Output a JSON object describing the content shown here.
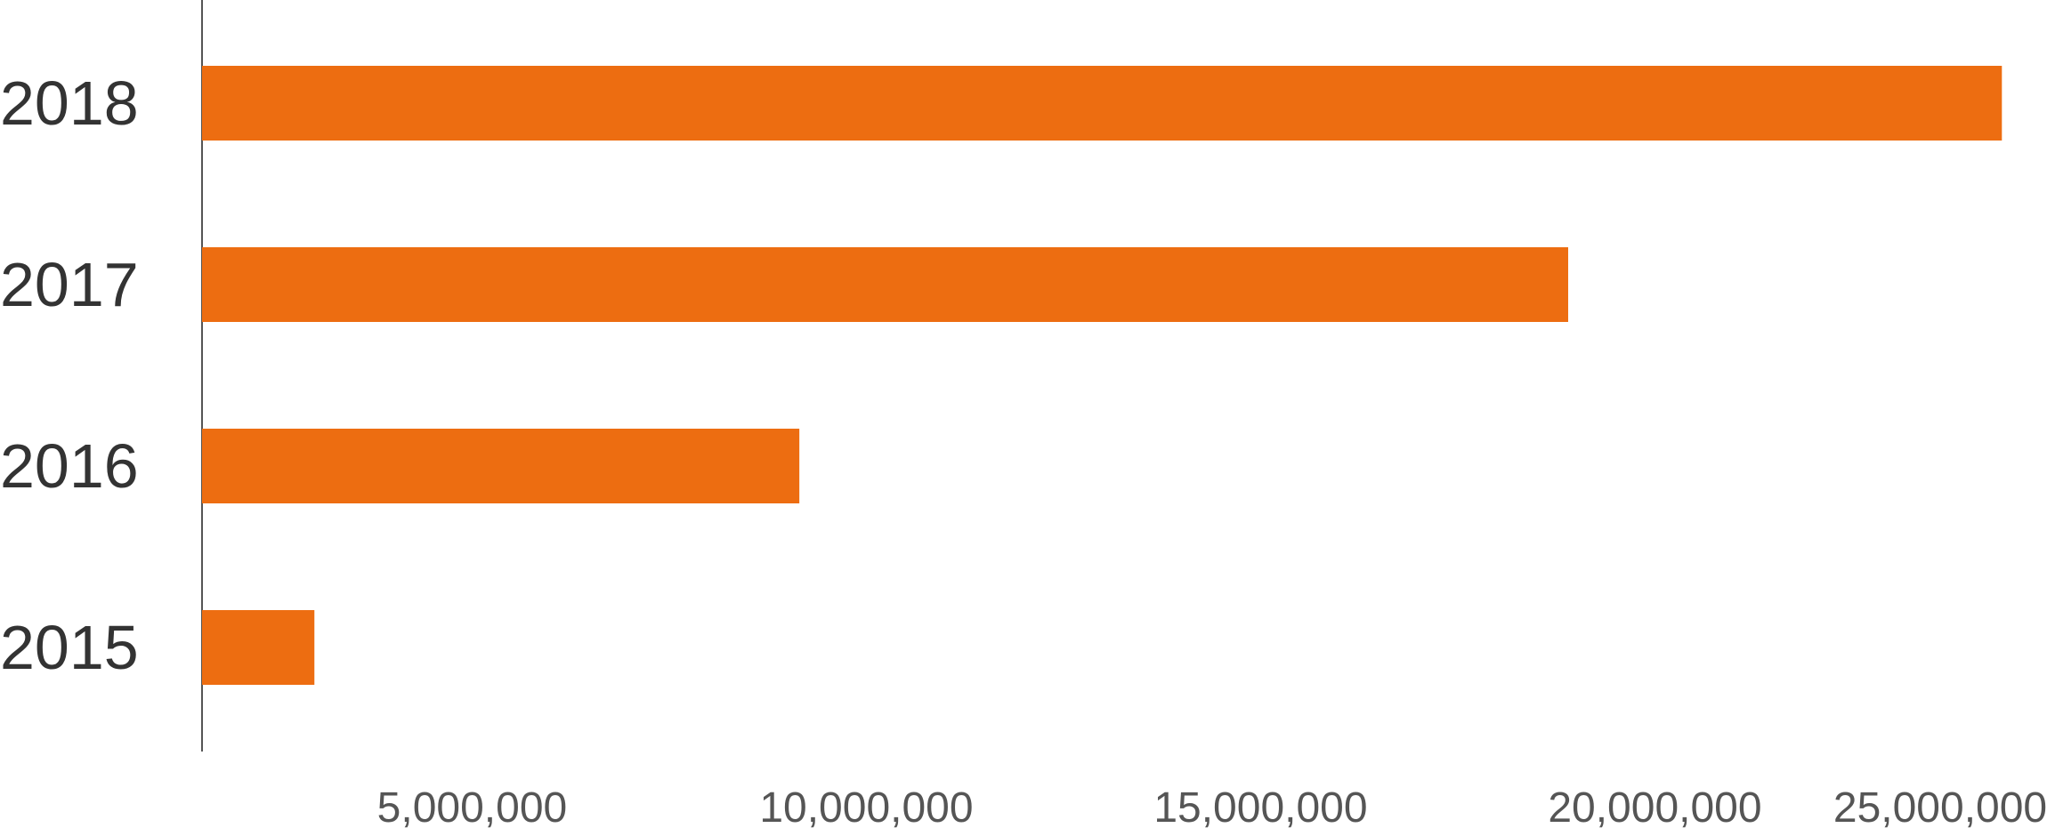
{
  "chart_data": {
    "type": "bar",
    "orientation": "horizontal",
    "title": "",
    "xlabel": "",
    "ylabel": "",
    "categories": [
      "2018",
      "2017",
      "2016",
      "2015"
    ],
    "values": [
      24400000,
      18900000,
      9150000,
      3000000
    ],
    "xlim": [
      1575000,
      26050000
    ],
    "xticks": [
      5000000,
      10000000,
      15000000,
      20000000,
      25000000
    ],
    "xtick_labels": [
      "5,000,000",
      "10,000,000",
      "15,000,000",
      "20,000,000",
      "25,000,000"
    ],
    "grid": false,
    "legend": "none",
    "colors": {
      "bar": "#ED6D11",
      "axis": "#555555",
      "category_text": "#333333",
      "tick_text": "#555555"
    }
  }
}
